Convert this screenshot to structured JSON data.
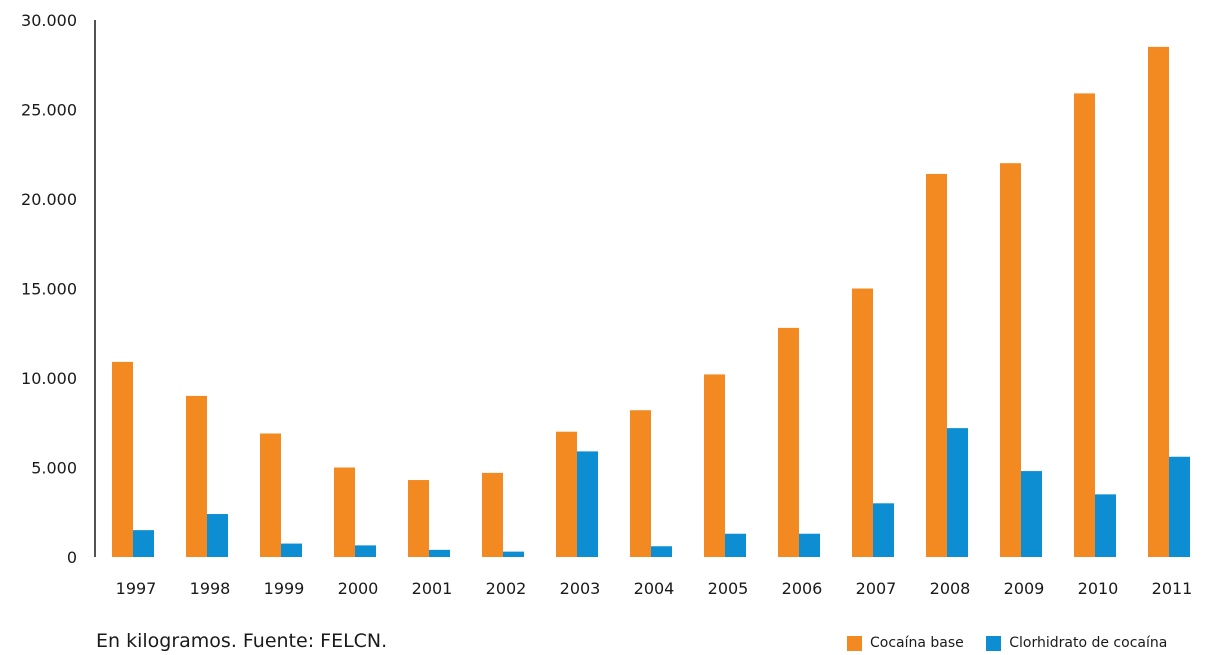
{
  "caption": "En kilogramos. Fuente: FELCN.",
  "legend": [
    {
      "label": "Cocaína base",
      "color": "#F28A21"
    },
    {
      "label": "Clorhidrato de cocaína",
      "color": "#0E8ED2"
    }
  ],
  "chart_data": {
    "type": "bar",
    "title": "",
    "xlabel": "",
    "ylabel": "",
    "ylim": [
      0,
      30000
    ],
    "yticks": [
      "0",
      "5.000",
      "10.000",
      "15.000",
      "20.000",
      "25.000",
      "30.000"
    ],
    "ytick_values": [
      0,
      5000,
      10000,
      15000,
      20000,
      25000,
      30000
    ],
    "grid": false,
    "legend_position": "bottom-right",
    "categories": [
      "1997",
      "1998",
      "1999",
      "2000",
      "2001",
      "2002",
      "2003",
      "2004",
      "2005",
      "2006",
      "2007",
      "2008",
      "2009",
      "2010",
      "2011"
    ],
    "series": [
      {
        "name": "Cocaína base",
        "color": "#F28A21",
        "values": [
          10900,
          9000,
          6900,
          5000,
          4300,
          4700,
          7000,
          8200,
          10200,
          12800,
          15000,
          21400,
          22000,
          25900,
          28500
        ]
      },
      {
        "name": "Clorhidrato de cocaína",
        "color": "#0E8ED2",
        "values": [
          1500,
          2400,
          750,
          650,
          400,
          300,
          5900,
          600,
          1300,
          1300,
          3000,
          7200,
          4800,
          3500,
          5600
        ]
      }
    ]
  }
}
